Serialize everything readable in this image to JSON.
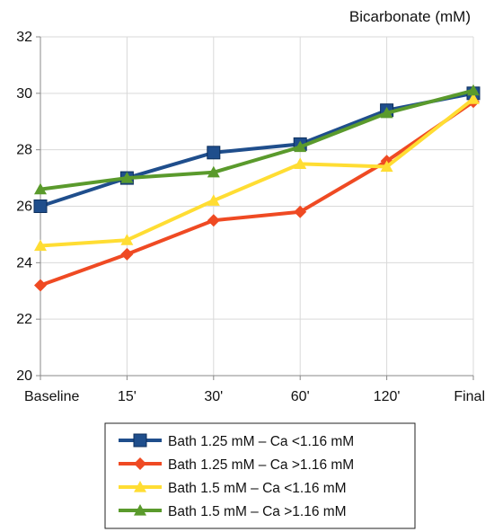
{
  "chart_data": {
    "type": "line",
    "ylabel": "Bicarbonate (mM)",
    "categories": [
      "Baseline",
      "15'",
      "30'",
      "60'",
      "120'",
      "Final"
    ],
    "ylim": [
      20,
      32
    ],
    "yticks": [
      20,
      22,
      24,
      26,
      28,
      30,
      32
    ],
    "grid": true,
    "legend_position": "bottom",
    "series": [
      {
        "name": "Bath 1.25 mM – Ca <1.16 mM",
        "color": "#1f4e8c",
        "marker": "square",
        "values": [
          26.0,
          27.0,
          27.9,
          28.2,
          29.4,
          30.0
        ]
      },
      {
        "name": "Bath 1.25 mM – Ca >1.16 mM",
        "color": "#ef4a23",
        "marker": "diamond",
        "values": [
          23.2,
          24.3,
          25.5,
          25.8,
          27.6,
          29.7
        ]
      },
      {
        "name": "Bath 1.5 mM – Ca <1.16 mM",
        "color": "#ffdd33",
        "marker": "triangle",
        "values": [
          24.6,
          24.8,
          26.2,
          27.5,
          27.4,
          29.8
        ]
      },
      {
        "name": "Bath 1.5 mM – Ca >1.16 mM",
        "color": "#5a9a2c",
        "marker": "triangle",
        "values": [
          26.6,
          27.0,
          27.2,
          28.1,
          29.3,
          30.1
        ]
      }
    ]
  }
}
